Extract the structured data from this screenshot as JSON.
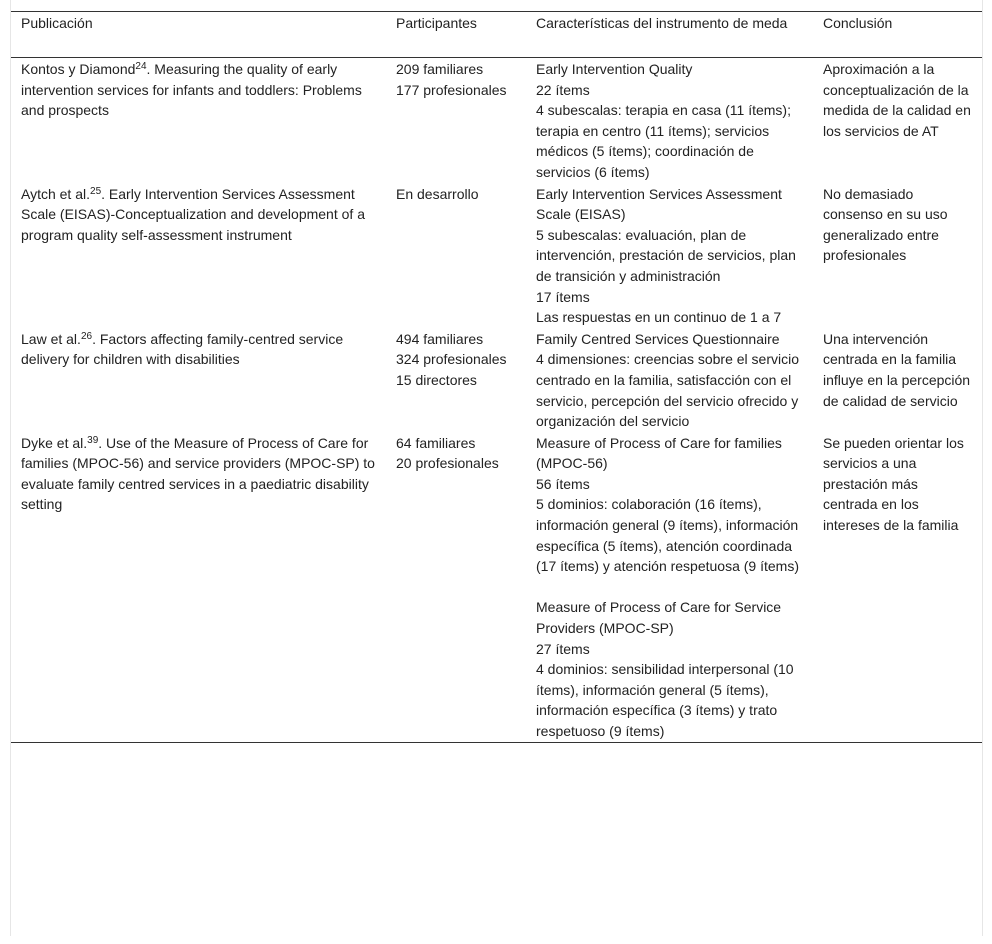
{
  "headers": [
    "Publicación",
    "Participantes",
    "Características del instrumento de meda",
    "Conclusión"
  ],
  "rows": [
    {
      "pub_author": "Kontos y Diamond",
      "pub_ref": "24",
      "pub_title": ". Measuring the quality of early intervention services for infants and toddlers: Problems and prospects",
      "participants": [
        "209 familiares",
        "177 profesionales"
      ],
      "instrument": [
        "Early Intervention Quality",
        "22 ítems",
        "4 subescalas: terapia en casa (11 ítems); terapia en centro (11 ítems); servicios médicos (5 ítems); coordinación de servicios (6 ítems)"
      ],
      "conclusion": "Aproximación a la conceptualización de la medida de la calidad en los servicios de AT"
    },
    {
      "pub_author": "Aytch et al.",
      "pub_ref": "25",
      "pub_title": ". Early Intervention Services Assessment Scale (EISAS)-Conceptualization and development of a program quality self-assessment instrument",
      "participants": [
        "En desarrollo"
      ],
      "instrument": [
        "Early Intervention Services Assessment Scale (EISAS)",
        "5 subescalas: evaluación, plan de intervención, prestación de servicios, plan de transición y administración",
        "17 ítems",
        "Las respuestas en un continuo de 1 a 7"
      ],
      "conclusion": "No demasiado consenso en su uso generalizado entre profesionales"
    },
    {
      "pub_author": "Law et al.",
      "pub_ref": "26",
      "pub_title": ". Factors affecting family-centred service delivery for children with disabilities",
      "participants": [
        "494 familiares",
        "324 profesionales",
        "15 directores"
      ],
      "instrument": [
        "Family Centred Services Questionnaire",
        "4 dimensiones: creencias sobre el servicio centrado en la familia, satisfacción con el servicio, percepción del servicio ofrecido y organización del servicio"
      ],
      "conclusion": "Una intervención centrada en la familia influye en la percepción de calidad de servicio"
    },
    {
      "pub_author": "Dyke et al.",
      "pub_ref": "39",
      "pub_title": ". Use of the Measure of Process of Care for families (MPOC-56) and service providers (MPOC-SP) to evaluate family centred services in a paediatric disability setting",
      "participants": [
        "64 familiares",
        "20 profesionales"
      ],
      "instrument": [
        "Measure of Process of Care for families (MPOC-56)",
        "56 ítems",
        "5 dominios: colaboración (16 ítems), información general (9 ítems), información específica (5 ítems), atención coordinada (17 ítems) y atención respetuosa (9 ítems)"
      ],
      "instrument_b": [
        "Measure of Process of Care for Service Providers (MPOC-SP)",
        "27 ítems",
        "4 dominios: sensibilidad interpersonal (10 ítems), información general (5 ítems), información específica (3 ítems) y trato respetuoso (9 ítems)"
      ],
      "conclusion": "Se pueden orientar los servicios a una prestación más centrada en los intereses de la familia"
    }
  ]
}
